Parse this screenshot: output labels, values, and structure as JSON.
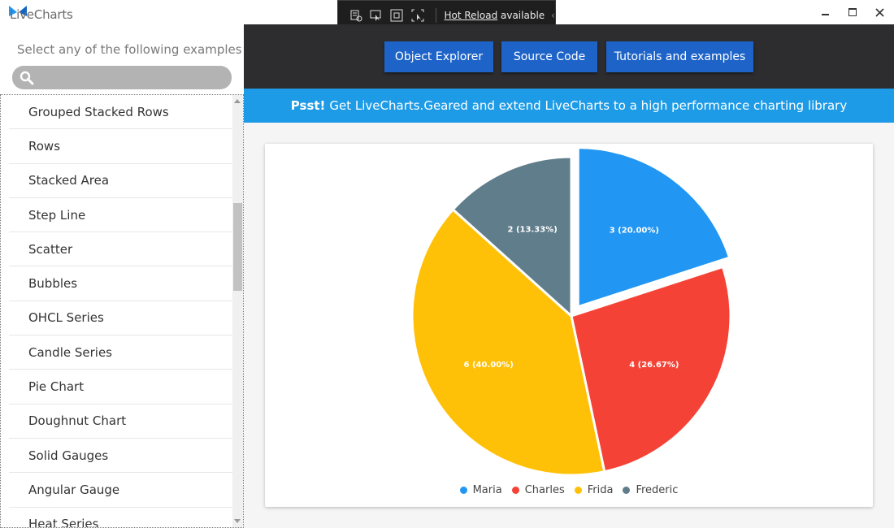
{
  "app": {
    "logo_text": "LiveCharts"
  },
  "hot_reload": {
    "link": "Hot Reload",
    "text": " available"
  },
  "sidebar": {
    "caption": "Select any of the following examples",
    "search_placeholder": "",
    "items": [
      "Grouped Stacked Rows",
      "Rows",
      "Stacked Area",
      "Step Line",
      "Scatter",
      "Bubbles",
      "OHCL Series",
      "Candle Series",
      "Pie Chart",
      "Doughnut Chart",
      "Solid Gauges",
      "Angular Gauge",
      "Heat Series"
    ]
  },
  "toolbar": {
    "object_explorer": "Object Explorer",
    "source_code": "Source Code",
    "tutorials": "Tutorials and examples"
  },
  "banner": {
    "bold": "Psst!",
    "text": "Get LiveCharts.Geared and extend LiveCharts to a high performance charting library"
  },
  "chart_data": {
    "type": "pie",
    "series": [
      {
        "name": "Maria",
        "value": 3,
        "label": "3 (20.00%)",
        "color": "#2196f3",
        "pushout": true
      },
      {
        "name": "Charles",
        "value": 4,
        "label": "4 (26.67%)",
        "color": "#f44336",
        "pushout": false
      },
      {
        "name": "Frida",
        "value": 6,
        "label": "6 (40.00%)",
        "color": "#ffc107",
        "pushout": false
      },
      {
        "name": "Frederic",
        "value": 2,
        "label": "2 (13.33%)",
        "color": "#607d8b",
        "pushout": false
      }
    ],
    "legend_position": "bottom"
  }
}
